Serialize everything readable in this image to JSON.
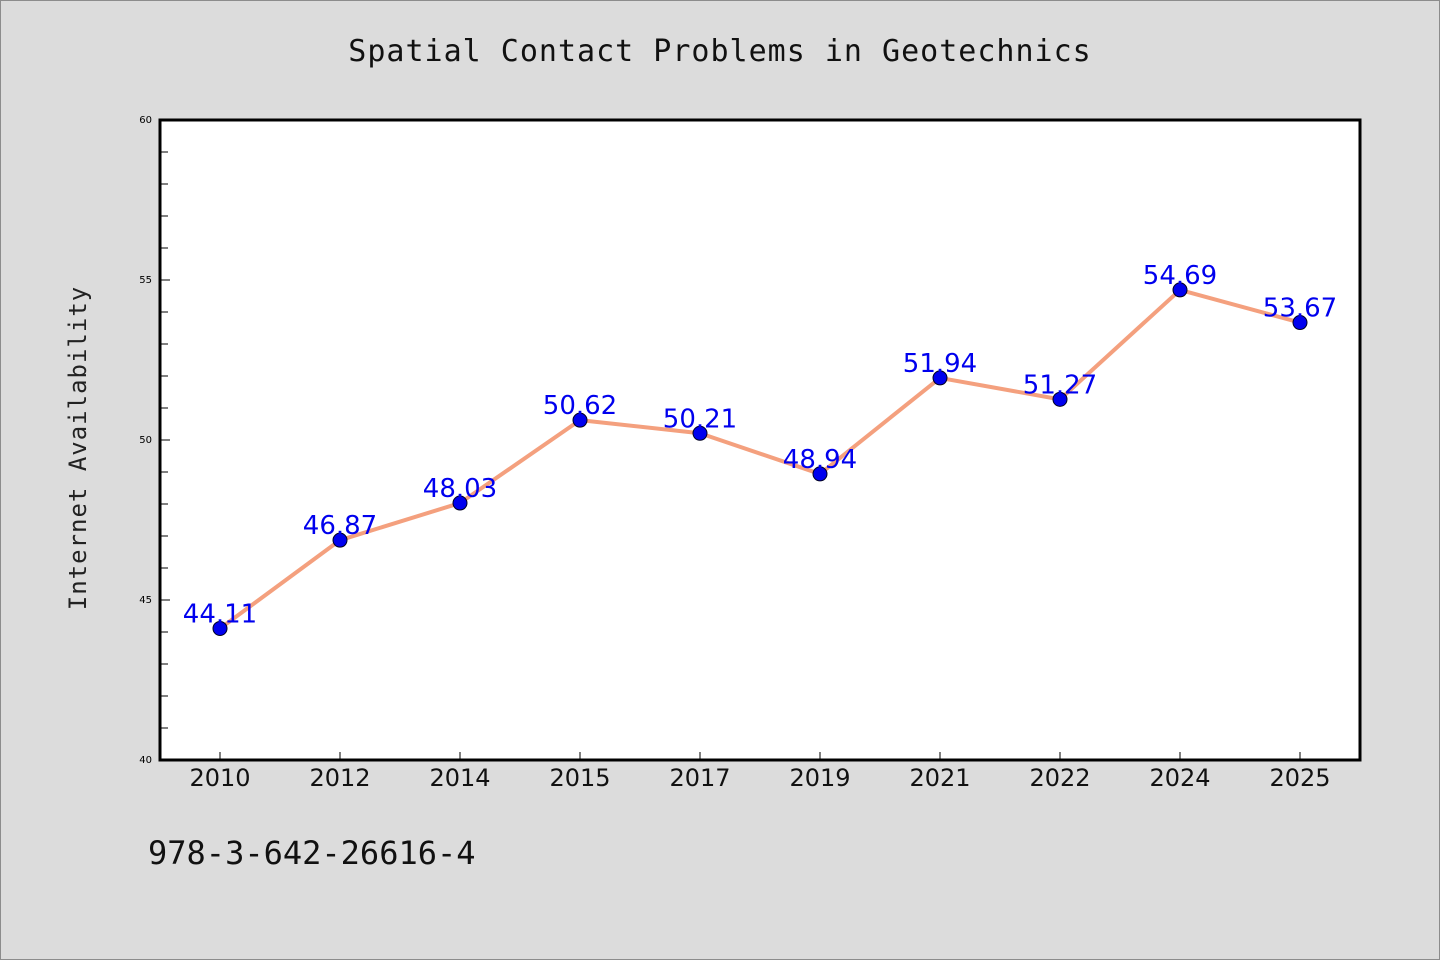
{
  "chart_data": {
    "type": "line",
    "title": "Spatial Contact Problems in Geotechnics",
    "xlabel": "",
    "ylabel": "Internet Availability",
    "categories": [
      "2010",
      "2012",
      "2014",
      "2015",
      "2017",
      "2019",
      "2021",
      "2022",
      "2024",
      "2025"
    ],
    "series": [
      {
        "values": [
          44.11,
          46.87,
          48.03,
          50.62,
          50.21,
          48.94,
          51.94,
          51.27,
          54.69,
          53.67
        ],
        "labels": [
          "44.11",
          "46.87",
          "48.03",
          "50.62",
          "50.21",
          "48.94",
          "51.94",
          "51.27",
          "54.69",
          "53.67"
        ]
      }
    ],
    "ylim": [
      40,
      60
    ],
    "yticks": [
      "40",
      "45",
      "50",
      "55",
      "60"
    ],
    "grid": false,
    "legend": "none"
  },
  "footer": {
    "code": "978-3-642-26616-4"
  },
  "colors": {
    "background": "#dcdcdc",
    "plot_background": "#ffffff",
    "line": "#f4a07e",
    "marker": "#0000ee",
    "data_label": "#0000ee"
  }
}
